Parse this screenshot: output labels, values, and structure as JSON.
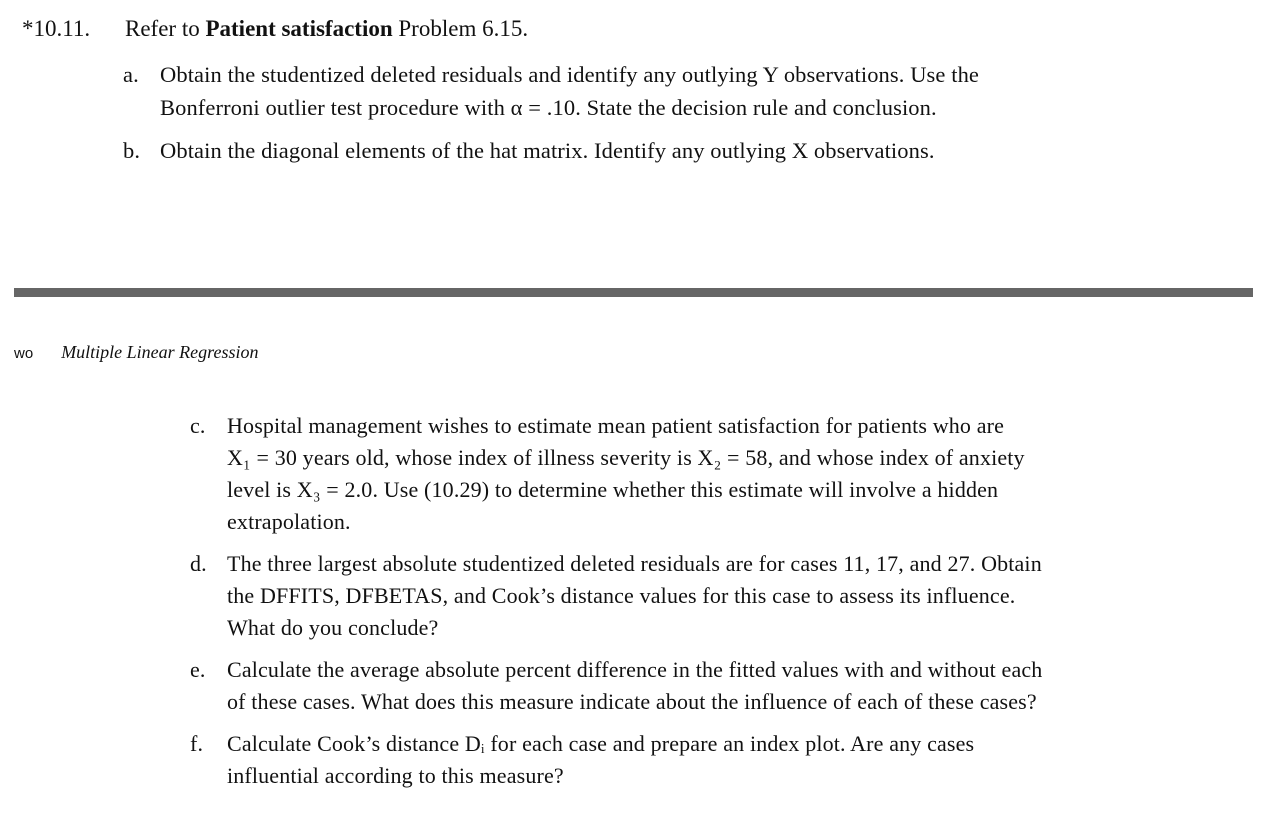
{
  "problem": {
    "number": "*10.11.",
    "text_before": "Refer to ",
    "bold_ref": "Patient satisfaction",
    "text_after": " Problem 6.15."
  },
  "parts_top": [
    {
      "mark": "a.",
      "lines": [
        "Obtain the studentized deleted residuals and identify any outlying Y observations. Use the",
        "Bonferroni outlier test procedure with α = .10. State the decision rule and conclusion."
      ]
    },
    {
      "mark": "b.",
      "lines": [
        "Obtain the diagonal elements of the hat matrix. Identify any outlying X observations."
      ]
    }
  ],
  "running_head": {
    "left": "wo",
    "title": "Multiple Linear Regression"
  },
  "parts_bottom": [
    {
      "mark": "c.",
      "lines": [
        "Hospital management wishes to estimate mean patient satisfaction for patients who are",
        "X₁ = 30 years old, whose index of illness severity is X₂ = 58, and whose index of anxiety",
        "level is X₃ = 2.0. Use (10.29) to determine whether this estimate will involve a hidden",
        "extrapolation."
      ]
    },
    {
      "mark": "d.",
      "lines": [
        "The three largest absolute studentized deleted residuals are for cases 11, 17, and 27. Obtain",
        "the DFFITS, DFBETAS, and Cook’s distance values for this case to assess its influence.",
        "What do you conclude?"
      ]
    },
    {
      "mark": "e.",
      "lines": [
        "Calculate the average absolute percent difference in the fitted values with and without each",
        "of these cases. What does this measure indicate about the influence of each of these cases?"
      ]
    },
    {
      "mark": "f.",
      "lines": [
        "Calculate Cook’s distance Dᵢ for each case and prepare an index plot. Are any cases",
        "influential according to this measure?"
      ]
    }
  ]
}
